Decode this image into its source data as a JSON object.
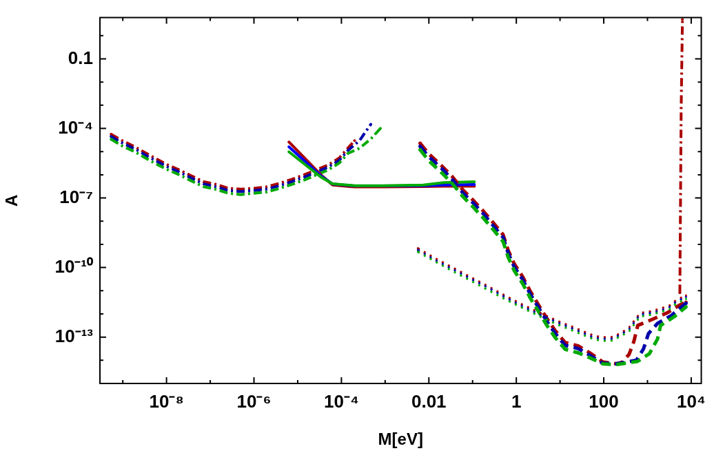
{
  "chart_data": {
    "type": "line",
    "xlabel": "M[eV]",
    "ylabel": "A",
    "log": "xy",
    "xlim": [
      3e-10,
      17000
    ],
    "ylim": [
      1e-15,
      6
    ],
    "xticks": [
      {
        "value": 1e-09,
        "label": null
      },
      {
        "value": 1e-08,
        "label": "10⁻⁸"
      },
      {
        "value": 1e-07,
        "label": null
      },
      {
        "value": 1e-06,
        "label": "10⁻⁶"
      },
      {
        "value": 1e-05,
        "label": null
      },
      {
        "value": 0.0001,
        "label": "10⁻⁴"
      },
      {
        "value": 0.001,
        "label": null
      },
      0.01,
      {
        "value": 0.1,
        "label": null
      },
      1,
      {
        "value": 10,
        "label": null
      },
      100,
      {
        "value": 1000,
        "label": null
      },
      {
        "value": 10000,
        "label": "10⁴"
      }
    ],
    "yticks": [
      {
        "value": 1,
        "label": null
      },
      0.1,
      {
        "value": 0.01,
        "label": null
      },
      {
        "value": 0.001,
        "label": null
      },
      {
        "value": 0.0001,
        "label": "10⁻⁴"
      },
      {
        "value": 1e-05,
        "label": null
      },
      {
        "value": 1e-06,
        "label": null
      },
      {
        "value": 1e-07,
        "label": "10⁻⁷"
      },
      {
        "value": 1e-08,
        "label": null
      },
      {
        "value": 1e-09,
        "label": null
      },
      {
        "value": 1e-10,
        "label": "10⁻¹⁰"
      },
      {
        "value": 1e-11,
        "label": null
      },
      {
        "value": 1e-12,
        "label": null
      },
      {
        "value": 1e-13,
        "label": "10⁻¹³"
      },
      {
        "value": 1e-14,
        "label": null
      }
    ],
    "series": [
      {
        "color": "#aa0000",
        "line_style": "dashdot",
        "x": [
          5.4e-10,
          1e-09,
          1.9e-09,
          3.3e-09,
          6.3e-09,
          1.1e-08,
          2e-08,
          3.6e-08,
          6.9e-08,
          1.4e-07,
          2.6e-07,
          5e-07,
          1e-06,
          1.9e-06,
          3.9e-06,
          7.2e-06,
          1.4e-05,
          4.9e-05,
          8.9e-05,
          0.00014,
          0.0002
        ],
        "values": [
          5.6e-05,
          2.9e-05,
          1.6e-05,
          8.9e-06,
          4.5e-06,
          2.6e-06,
          1.6e-06,
          9.3e-07,
          5.1e-07,
          3.8e-07,
          2.6e-07,
          2.4e-07,
          2.6e-07,
          3e-07,
          4.3e-07,
          6.3e-07,
          1e-06,
          2.6e-06,
          5.3e-06,
          1.4e-05,
          3e-05
        ]
      },
      {
        "color": "#0000aa",
        "line_style": "dashdot",
        "x": [
          5.4e-10,
          1e-09,
          1.9e-09,
          3.3e-09,
          6.3e-09,
          1.1e-08,
          2e-08,
          3.6e-08,
          6.9e-08,
          1.4e-07,
          2.6e-07,
          5e-07,
          1e-06,
          1.9e-06,
          3.9e-06,
          7.2e-06,
          1.4e-05,
          4.9e-05,
          8.9e-05,
          0.00014,
          0.00026,
          0.00047
        ],
        "values": [
          4.5e-05,
          2.3e-05,
          1.3e-05,
          7.1e-06,
          3.6e-06,
          2.1e-06,
          1.3e-06,
          7.4e-07,
          4.1e-07,
          3e-07,
          2.1e-07,
          1.9e-07,
          2.1e-07,
          2.4e-07,
          3.4e-07,
          5e-07,
          7.9e-07,
          2.1e-06,
          4.2e-06,
          1.1e-05,
          3e-05,
          0.00015
        ]
      },
      {
        "color": "#00aa00",
        "line_style": "dashdot",
        "x": [
          5.4e-10,
          1e-09,
          1.9e-09,
          3.3e-09,
          6.3e-09,
          1.1e-08,
          2e-08,
          3.6e-08,
          6.9e-08,
          1.4e-07,
          2.6e-07,
          5e-07,
          1e-06,
          1.9e-06,
          3.9e-06,
          7.2e-06,
          1.4e-05,
          4.9e-05,
          8.9e-05,
          0.00014,
          0.00026,
          0.00047,
          0.00078
        ],
        "values": [
          3.4e-05,
          1.7e-05,
          9.8e-06,
          5.3e-06,
          2.7e-06,
          1.6e-06,
          9.8e-07,
          5.6e-07,
          3.1e-07,
          2.3e-07,
          1.6e-07,
          1.4e-07,
          1.6e-07,
          1.8e-07,
          2.6e-07,
          3.8e-07,
          5.9e-07,
          1.6e-06,
          3.2e-06,
          8.3e-06,
          1.4e-05,
          3.5e-05,
          0.0001
        ]
      },
      {
        "color": "#aa0000",
        "line_style": "solid",
        "x": [
          6.3e-06,
          3.4e-05,
          6.3e-05,
          0.0002,
          0.00087,
          0.0074,
          0.022,
          0.11
        ],
        "values": [
          2.6e-05,
          1e-06,
          3.6e-07,
          3e-07,
          3e-07,
          3.1e-07,
          3.2e-07,
          3.2e-07
        ]
      },
      {
        "color": "#0000ff",
        "line_style": "solid",
        "x": [
          6.3e-06,
          3.4e-05,
          6.3e-05,
          0.0002,
          0.00087,
          0.0074,
          0.022,
          0.11
        ],
        "values": [
          1.6e-05,
          9e-07,
          4e-07,
          3.3e-07,
          3.3e-07,
          3.4e-07,
          3.6e-07,
          3.8e-07
        ]
      },
      {
        "color": "#00aa00",
        "line_style": "solid",
        "x": [
          6.3e-06,
          3.4e-05,
          6.3e-05,
          0.0002,
          0.00087,
          0.0074,
          0.022,
          0.11
        ],
        "values": [
          9.8e-06,
          8e-07,
          4.1e-07,
          3.4e-07,
          3.4e-07,
          3.6e-07,
          4.6e-07,
          5e-07
        ]
      },
      {
        "color": "#aa0000",
        "line_style": "dashed",
        "x": [
          0.0063,
          0.01,
          0.019,
          0.034,
          0.059,
          0.1,
          0.18,
          0.3,
          0.5,
          0.65,
          0.89,
          1.4,
          2.1,
          3.2,
          4.9,
          7.6,
          13,
          26,
          52,
          95,
          190,
          260,
          380,
          490,
          600,
          1100,
          2800,
          5200,
          7600
        ],
        "values": [
          2.3e-05,
          7.9e-06,
          2.6e-06,
          8.5e-07,
          2.3e-07,
          8.5e-08,
          2.6e-08,
          8.3e-09,
          2.6e-09,
          5.6e-10,
          1.5e-10,
          4e-11,
          9.3e-12,
          2.5e-12,
          6.8e-13,
          2e-13,
          5.9e-14,
          4.2e-14,
          1.9e-14,
          8.5e-15,
          7.1e-15,
          8.1e-15,
          1.8e-14,
          6.6e-14,
          3.2e-13,
          5.1e-13,
          1.1e-12,
          2.3e-12,
          3.2e-12
        ]
      },
      {
        "color": "#0000aa",
        "line_style": "dashed",
        "x": [
          0.0063,
          0.01,
          0.019,
          0.034,
          0.059,
          0.1,
          0.18,
          0.3,
          0.5,
          0.65,
          0.89,
          1.4,
          2.1,
          3.2,
          4.9,
          7.6,
          13,
          26,
          52,
          95,
          190,
          560,
          810,
          1050,
          1700,
          3500,
          7600
        ],
        "values": [
          1.7e-05,
          5.9e-06,
          2e-06,
          6.4e-07,
          1.7e-07,
          6.4e-08,
          2e-08,
          6.2e-09,
          2e-09,
          4.2e-10,
          1.1e-10,
          3e-11,
          7e-12,
          1.9e-12,
          5.1e-13,
          1.5e-13,
          4.4e-14,
          3.2e-14,
          1.5e-14,
          7.5e-15,
          7e-15,
          1e-14,
          3.1e-14,
          1.4e-13,
          3.9e-13,
          8.5e-13,
          2.9e-12
        ]
      },
      {
        "color": "#00aa00",
        "line_style": "dashed",
        "x": [
          0.0063,
          0.01,
          0.019,
          0.034,
          0.059,
          0.1,
          0.18,
          0.3,
          0.5,
          0.65,
          0.89,
          1.4,
          2.1,
          3.2,
          4.9,
          7.6,
          13,
          26,
          52,
          95,
          190,
          590,
          1100,
          1700,
          2000,
          4100,
          7600
        ],
        "values": [
          1.2e-05,
          4e-06,
          1.3e-06,
          4.3e-07,
          1.2e-07,
          4.3e-08,
          1.3e-08,
          4.2e-09,
          1.3e-09,
          2.8e-10,
          7.5e-11,
          2e-11,
          4.7e-12,
          1.3e-12,
          3.4e-13,
          1e-13,
          3e-14,
          2.1e-14,
          1.2e-14,
          7e-15,
          6.5e-15,
          8.9e-15,
          1.9e-14,
          8.3e-14,
          3.2e-13,
          7.6e-13,
          2e-12
        ]
      },
      {
        "color": "#aa0000",
        "line_style": "dotted",
        "x": [
          0.0056,
          0.014,
          0.035,
          0.087,
          0.22,
          0.54,
          1.4,
          3.5,
          8.7,
          21,
          56,
          89,
          150,
          250,
          380,
          680,
          1200,
          2000,
          3200,
          4600,
          7600
        ],
        "values": [
          6.8e-10,
          2.5e-10,
          1e-10,
          4e-11,
          1.6e-11,
          6.3e-12,
          2.5e-12,
          1.1e-12,
          5e-13,
          2.6e-13,
          1.2e-13,
          9.8e-14,
          1e-13,
          1.5e-13,
          2.6e-13,
          1.1e-12,
          1.3e-12,
          1.7e-12,
          2.3e-12,
          4e-12,
          6.3e-12
        ]
      },
      {
        "color": "#0000aa",
        "line_style": "dotted",
        "x": [
          0.0056,
          0.014,
          0.035,
          0.087,
          0.22,
          0.54,
          1.4,
          3.5,
          8.7,
          21,
          56,
          89,
          150,
          250,
          380,
          680,
          1200,
          2000,
          3200,
          4600,
          7600
        ],
        "values": [
          5.8e-10,
          2.1e-10,
          8.5e-11,
          3.4e-11,
          1.4e-11,
          5.4e-12,
          2.1e-12,
          9.4e-13,
          4.3e-13,
          2.2e-13,
          1e-13,
          8.3e-14,
          8.5e-14,
          1.3e-13,
          2.2e-13,
          9.4e-13,
          1.1e-12,
          1.4e-12,
          2e-12,
          3.4e-12,
          5.4e-12
        ]
      },
      {
        "color": "#00aa00",
        "line_style": "dotted",
        "x": [
          0.0056,
          0.014,
          0.035,
          0.087,
          0.22,
          0.54,
          1.4,
          3.5,
          8.7,
          21,
          56,
          89,
          150,
          250,
          380,
          680,
          1200,
          2000,
          3200,
          4600,
          7600
        ],
        "values": [
          4.8e-10,
          1.8e-10,
          7e-11,
          2.8e-11,
          1.1e-11,
          4.4e-12,
          1.8e-12,
          7.7e-13,
          3.5e-13,
          1.8e-13,
          8.4e-14,
          6.9e-14,
          7e-14,
          1.1e-13,
          1.8e-13,
          7.7e-13,
          9.1e-13,
          1.2e-12,
          1.6e-12,
          2.8e-12,
          4.4e-12
        ]
      },
      {
        "color": "#aa0000",
        "line_style": "dashdot",
        "x": [
          5500,
          5900,
          6300
        ],
        "values": [
          8.1e-12,
          0.00079,
          5
        ]
      }
    ]
  }
}
